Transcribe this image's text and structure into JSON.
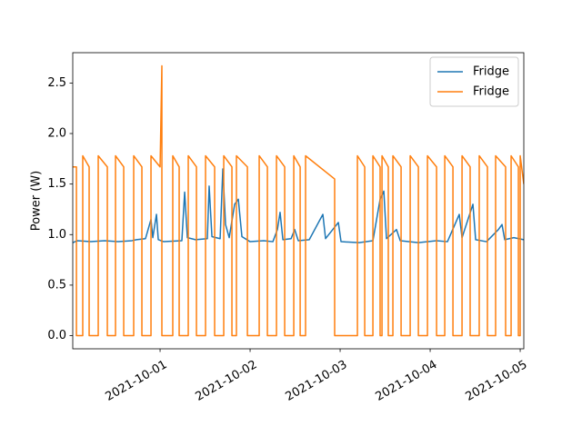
{
  "chart_data": {
    "type": "line",
    "y_label": "Power (W)",
    "xlim": [
      18900.03,
      18905.04
    ],
    "ylim": [
      -0.13,
      2.8
    ],
    "xticks": [
      {
        "value": 18901,
        "label": "2021-10-01"
      },
      {
        "value": 18902,
        "label": "2021-10-02"
      },
      {
        "value": 18903,
        "label": "2021-10-03"
      },
      {
        "value": 18904,
        "label": "2021-10-04"
      },
      {
        "value": 18905,
        "label": "2021-10-05"
      }
    ],
    "yticks": [
      {
        "value": 0,
        "label": "0.0"
      },
      0.5,
      {
        "value": 1,
        "label": "1.0"
      },
      1.5,
      {
        "value": 2,
        "label": "2.0"
      },
      2.5
    ],
    "grid": false,
    "legend": "upper right",
    "series": [
      {
        "name": "Fridge",
        "color": "#1f77b4",
        "x": [
          18900.03,
          18900.081,
          18900.232,
          18900.384,
          18900.535,
          18900.687,
          18900.737,
          18900.838,
          18900.899,
          18900.919,
          18900.96,
          18900.98,
          18901.04,
          18901.242,
          18901.273,
          18901.303,
          18901.394,
          18901.525,
          18901.545,
          18901.576,
          18901.667,
          18901.697,
          18901.727,
          18901.768,
          18901.828,
          18901.869,
          18901.909,
          18902.0,
          18902.152,
          18902.253,
          18902.303,
          18902.333,
          18902.364,
          18902.455,
          18902.495,
          18902.535,
          18902.657,
          18902.808,
          18902.838,
          18902.98,
          18903.01,
          18903.212,
          18903.364,
          18903.444,
          18903.485,
          18903.515,
          18903.626,
          18903.667,
          18903.869,
          18904.071,
          18904.192,
          18904.323,
          18904.354,
          18904.475,
          18904.505,
          18904.626,
          18904.758,
          18904.798,
          18904.828,
          18904.929,
          18905.04
        ],
        "values": [
          0.92,
          0.94,
          0.93,
          0.94,
          0.93,
          0.94,
          0.95,
          0.96,
          1.15,
          0.97,
          1.2,
          0.95,
          0.93,
          0.94,
          1.42,
          0.97,
          0.95,
          0.96,
          1.48,
          0.98,
          0.96,
          1.65,
          1.1,
          0.97,
          1.3,
          1.35,
          0.98,
          0.93,
          0.94,
          0.93,
          1.05,
          1.22,
          0.95,
          0.96,
          1.05,
          0.94,
          0.95,
          1.2,
          0.96,
          1.12,
          0.93,
          0.92,
          0.94,
          1.35,
          1.43,
          0.96,
          1.05,
          0.94,
          0.92,
          0.94,
          0.93,
          1.2,
          0.97,
          1.3,
          0.95,
          0.93,
          1.05,
          1.1,
          0.95,
          0.97,
          0.95
        ]
      },
      {
        "name": "Fridge",
        "color": "#ff7f0e",
        "x": [
          18900.03,
          18900.071,
          18900.071,
          18900.141,
          18900.141,
          18900.212,
          18900.212,
          18900.313,
          18900.313,
          18900.414,
          18900.414,
          18900.505,
          18900.505,
          18900.596,
          18900.596,
          18900.707,
          18900.707,
          18900.798,
          18900.798,
          18900.899,
          18900.899,
          18901.0,
          18901.02,
          18901.02,
          18901.02,
          18901.141,
          18901.141,
          18901.212,
          18901.212,
          18901.313,
          18901.313,
          18901.404,
          18901.404,
          18901.505,
          18901.505,
          18901.606,
          18901.606,
          18901.707,
          18901.707,
          18901.798,
          18901.798,
          18901.848,
          18901.848,
          18901.97,
          18901.97,
          18902.101,
          18902.101,
          18902.192,
          18902.192,
          18902.293,
          18902.293,
          18902.384,
          18902.384,
          18902.485,
          18902.485,
          18902.556,
          18902.556,
          18902.616,
          18902.616,
          18902.939,
          18902.939,
          18903.192,
          18903.192,
          18903.273,
          18903.273,
          18903.364,
          18903.364,
          18903.444,
          18903.444,
          18903.465,
          18903.465,
          18903.535,
          18903.535,
          18903.586,
          18903.586,
          18903.677,
          18903.677,
          18903.778,
          18903.778,
          18903.869,
          18903.869,
          18903.97,
          18903.97,
          18904.071,
          18904.071,
          18904.162,
          18904.162,
          18904.253,
          18904.253,
          18904.354,
          18904.354,
          18904.444,
          18904.444,
          18904.545,
          18904.545,
          18904.636,
          18904.636,
          18904.727,
          18904.727,
          18904.838,
          18904.838,
          18904.899,
          18904.899,
          18904.98,
          18904.98,
          18905.0,
          18905.0,
          18905.04
        ],
        "values": [
          1.67,
          1.67,
          0,
          0,
          1.78,
          1.67,
          0,
          0,
          1.78,
          1.67,
          0,
          0,
          1.78,
          1.67,
          0,
          0,
          1.78,
          1.67,
          0,
          0,
          1.78,
          1.67,
          2.67,
          0.55,
          0,
          0,
          1.78,
          1.67,
          0,
          0,
          1.78,
          1.67,
          0,
          0,
          1.78,
          1.67,
          0,
          0,
          1.78,
          1.67,
          0,
          0,
          1.78,
          1.67,
          0,
          0,
          1.78,
          1.67,
          0,
          0,
          1.78,
          1.67,
          0,
          0,
          1.78,
          1.67,
          0,
          0,
          1.78,
          1.55,
          0,
          0,
          1.78,
          1.67,
          0,
          0,
          1.78,
          1.67,
          0,
          0,
          1.78,
          1.67,
          0,
          0,
          1.78,
          1.67,
          0,
          0,
          1.78,
          1.67,
          0,
          0,
          1.78,
          1.67,
          0,
          0,
          1.78,
          1.67,
          0,
          0,
          1.78,
          1.67,
          0,
          0,
          1.78,
          1.67,
          0,
          0,
          1.78,
          1.67,
          0,
          0,
          1.78,
          1.67,
          0,
          0,
          1.78,
          1.5
        ]
      }
    ]
  }
}
